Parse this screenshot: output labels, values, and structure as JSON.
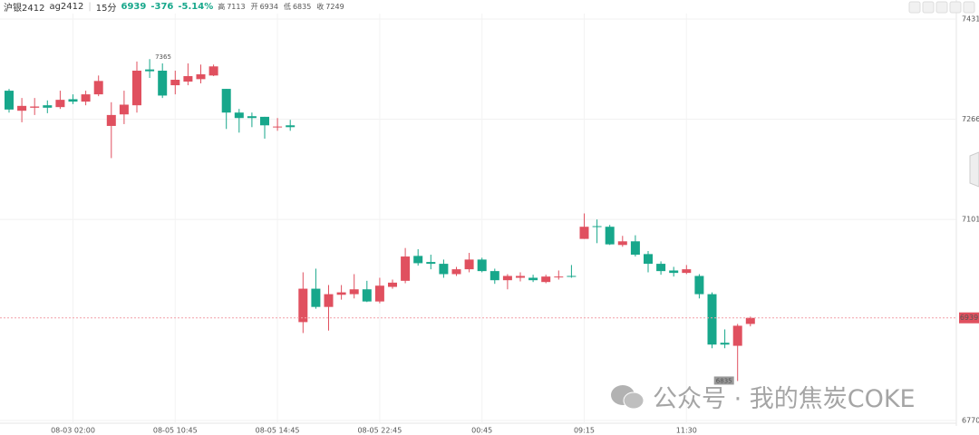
{
  "header": {
    "name": "沪银2412",
    "code": "ag2412",
    "period": "15分",
    "price": "6939",
    "change": "-376",
    "change_pct": "-5.14%",
    "stats": [
      {
        "label": "高",
        "value": 7113
      },
      {
        "label": "开",
        "value": 6934
      },
      {
        "label": "低",
        "value": 6835
      },
      {
        "label": "收",
        "value": 7249
      }
    ]
  },
  "watermark": "公众号 · 我的焦炭COKE",
  "chart_data": {
    "type": "candlestick",
    "up_color": "#e0505f",
    "down_color": "#17a78b",
    "categories": [
      null,
      null,
      null,
      null,
      null,
      "08-03 02:00",
      null,
      null,
      null,
      null,
      null,
      null,
      null,
      "08-05 10:45",
      null,
      null,
      null,
      null,
      null,
      null,
      null,
      "08-05 14:45",
      null,
      null,
      null,
      null,
      null,
      null,
      null,
      "08-05 22:45",
      null,
      null,
      null,
      null,
      null,
      null,
      null,
      "00:45",
      null,
      null,
      null,
      null,
      null,
      null,
      null,
      "09:15",
      null,
      null,
      null,
      null,
      null,
      null,
      null,
      "11:30",
      null,
      null,
      null,
      null,
      null
    ],
    "open": [
      7313,
      7280,
      7285,
      7289,
      7286,
      7299,
      7295,
      7307,
      7255,
      7274,
      7289,
      7348,
      7346,
      7322,
      7328,
      7332,
      7338,
      7316,
      7277,
      7271,
      7270,
      7253,
      7256,
      6932,
      6987,
      6957,
      6977,
      6978,
      6986,
      6966,
      6990,
      7000,
      7041,
      7031,
      7028,
      7011,
      7019,
      7035,
      7016,
      7001,
      7005,
      7005,
      6998,
      7006,
      7008,
      7069,
      7090,
      7089,
      7059,
      7065,
      7044,
      7028,
      7017,
      7013,
      7008,
      6978,
      6898,
      6893,
      6929
    ],
    "high": [
      7316,
      7301,
      7301,
      7297,
      7313,
      7307,
      7313,
      7338,
      7294,
      7313,
      7361,
      7365,
      7358,
      7346,
      7358,
      7356,
      7356,
      7316,
      7283,
      7277,
      7270,
      7268,
      7265,
      7014,
      7020,
      6993,
      6993,
      7011,
      7000,
      7005,
      7002,
      7054,
      7052,
      7043,
      7035,
      7023,
      7046,
      7038,
      7020,
      7011,
      7014,
      7010,
      7010,
      7017,
      7026,
      7111,
      7101,
      7092,
      7074,
      7075,
      7049,
      7032,
      7023,
      7026,
      7011,
      6981,
      6920,
      6929,
      6941
    ],
    "low": [
      7277,
      7261,
      7273,
      7276,
      7283,
      7291,
      7289,
      7304,
      7202,
      7258,
      7277,
      7334,
      7301,
      7307,
      7322,
      7325,
      7337,
      7250,
      7244,
      7253,
      7234,
      7247,
      7247,
      6914,
      6954,
      6918,
      6969,
      6971,
      6965,
      6963,
      6987,
      6996,
      7025,
      7019,
      7005,
      7008,
      7014,
      7014,
      6995,
      6986,
      6999,
      6998,
      6996,
      7002,
      7005,
      7069,
      7062,
      7059,
      7056,
      7040,
      7014,
      7010,
      7007,
      7011,
      6971,
      6889,
      6889,
      6835,
      6925
    ],
    "close": [
      7282,
      7288,
      7287,
      7285,
      7298,
      7295,
      7307,
      7329,
      7273,
      7290,
      7346,
      7345,
      7305,
      7331,
      7337,
      7340,
      7353,
      7277,
      7268,
      7268,
      7256,
      7254,
      7253,
      6987,
      6957,
      6978,
      6981,
      6986,
      6966,
      6992,
      6997,
      7040,
      7029,
      7028,
      7011,
      7019,
      7035,
      7016,
      7001,
      7008,
      7008,
      7001,
      7007,
      7007,
      7007,
      7089,
      7089,
      7060,
      7065,
      7043,
      7028,
      7016,
      7013,
      7019,
      6978,
      6895,
      6895,
      6926,
      6939
    ],
    "ylim": [
      6770,
      7431
    ],
    "yticks": [
      7431,
      7266,
      7101,
      6770
    ],
    "grid": true
  }
}
